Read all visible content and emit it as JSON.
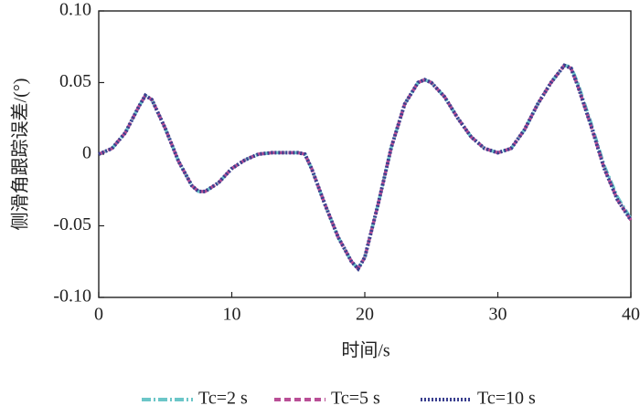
{
  "chart_data": {
    "type": "line",
    "xlabel": "时间/s",
    "ylabel": "侧滑角跟踪误差/(°)",
    "x": [
      0,
      1,
      2,
      3,
      3.5,
      4,
      5,
      6,
      7,
      7.5,
      8,
      9,
      10,
      11,
      12,
      13,
      14,
      15,
      15.5,
      16,
      17,
      18,
      19,
      19.5,
      20,
      21,
      22,
      23,
      24,
      24.5,
      25,
      26,
      27,
      28,
      29,
      30,
      31,
      32,
      33,
      34,
      35,
      35.5,
      36,
      37,
      38,
      39,
      40
    ],
    "series": [
      {
        "name": "Tc=2 s",
        "color": "#6cc6c8",
        "dash": "10,3,2,3",
        "values": [
          0,
          0.004,
          0.015,
          0.033,
          0.041,
          0.038,
          0.018,
          -0.005,
          -0.022,
          -0.026,
          -0.026,
          -0.02,
          -0.01,
          -0.004,
          0,
          0.001,
          0.001,
          0.001,
          0,
          -0.01,
          -0.035,
          -0.058,
          -0.075,
          -0.08,
          -0.072,
          -0.035,
          0.005,
          0.035,
          0.05,
          0.052,
          0.05,
          0.04,
          0.025,
          0.012,
          0.004,
          0.001,
          0.004,
          0.017,
          0.035,
          0.05,
          0.062,
          0.061,
          0.05,
          0.022,
          -0.008,
          -0.03,
          -0.045
        ]
      },
      {
        "name": "Tc=5 s",
        "color": "#b94f96",
        "dash": "7,4",
        "values": [
          0,
          0.004,
          0.015,
          0.033,
          0.041,
          0.038,
          0.018,
          -0.005,
          -0.022,
          -0.026,
          -0.026,
          -0.02,
          -0.01,
          -0.004,
          0,
          0.001,
          0.001,
          0.001,
          0,
          -0.01,
          -0.035,
          -0.058,
          -0.075,
          -0.08,
          -0.072,
          -0.035,
          0.005,
          0.035,
          0.05,
          0.052,
          0.05,
          0.04,
          0.025,
          0.012,
          0.004,
          0.001,
          0.004,
          0.017,
          0.035,
          0.05,
          0.062,
          0.06,
          0.048,
          0.02,
          -0.01,
          -0.032,
          -0.046
        ]
      },
      {
        "name": "Tc=10 s",
        "color": "#3a3f8f",
        "dash": "2,2",
        "values": [
          0,
          0.004,
          0.015,
          0.033,
          0.041,
          0.038,
          0.018,
          -0.005,
          -0.022,
          -0.026,
          -0.026,
          -0.02,
          -0.01,
          -0.004,
          0,
          0.001,
          0.001,
          0.001,
          0,
          -0.01,
          -0.035,
          -0.058,
          -0.075,
          -0.08,
          -0.072,
          -0.035,
          0.005,
          0.035,
          0.05,
          0.052,
          0.05,
          0.04,
          0.025,
          0.012,
          0.004,
          0.001,
          0.004,
          0.017,
          0.035,
          0.05,
          0.062,
          0.06,
          0.048,
          0.02,
          -0.01,
          -0.032,
          -0.046
        ]
      }
    ],
    "xlim": [
      0,
      40
    ],
    "xticks": [
      0,
      10,
      20,
      30,
      40
    ],
    "ylim": [
      -0.1,
      0.1
    ],
    "yticks": [
      {
        "value": -0.1,
        "label": "-0.10"
      },
      -0.05,
      0,
      0.05,
      {
        "value": 0.1,
        "label": "0.10"
      }
    ],
    "grid": false,
    "legend": "bottom"
  }
}
